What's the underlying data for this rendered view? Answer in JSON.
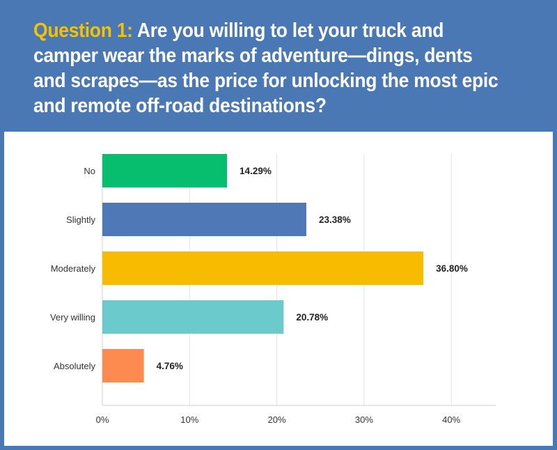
{
  "header": {
    "question_prefix": "Question 1:",
    "question_text": "Are you willing to let your truck and camper wear the marks of adventure—dings, dents and scrapes—as the price for unlocking the most epic and remote off-road destinations?"
  },
  "colors": {
    "background": "#4a78b5",
    "prefix": "#f6c200",
    "title": "#ffffff"
  },
  "chart_data": {
    "type": "bar",
    "orientation": "horizontal",
    "categories": [
      "No",
      "Slightly",
      "Moderately",
      "Very willing",
      "Absolutely"
    ],
    "values": [
      14.29,
      23.38,
      36.8,
      20.78,
      4.76
    ],
    "value_labels": [
      "14.29%",
      "23.38%",
      "36.80%",
      "20.78%",
      "4.76%"
    ],
    "colors": [
      "#07be6e",
      "#4f78b6",
      "#f7bc00",
      "#6bcacc",
      "#fd8a4e"
    ],
    "xlim": [
      0,
      45
    ],
    "xticks": [
      0,
      10,
      20,
      30,
      40
    ],
    "xtick_labels": [
      "0%",
      "10%",
      "20%",
      "30%",
      "40%"
    ],
    "title": "",
    "xlabel": "",
    "ylabel": "",
    "grid": true
  }
}
